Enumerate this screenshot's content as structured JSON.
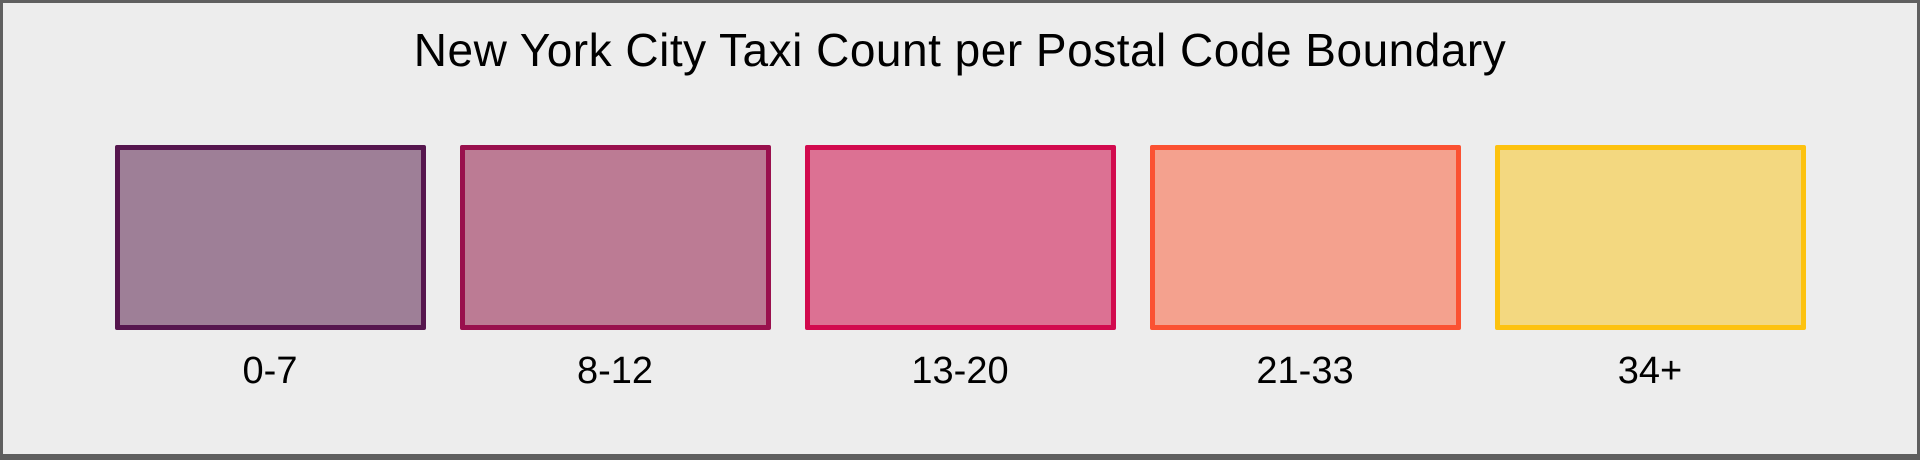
{
  "figure": {
    "title": "New York City Taxi Count per Postal Code Boundary",
    "background_color": "#ededed",
    "frame_color": "#5f5f5f",
    "text_color": "#000000"
  },
  "legend": {
    "items": [
      {
        "label": "0-7",
        "fill": "#9e7f97",
        "stroke": "#56164e"
      },
      {
        "label": "8-12",
        "fill": "#bc7b94",
        "stroke": "#99104d"
      },
      {
        "label": "13-20",
        "fill": "#dc7193",
        "stroke": "#d20a4e"
      },
      {
        "label": "21-33",
        "fill": "#f4a18e",
        "stroke": "#fb5132"
      },
      {
        "label": "34+",
        "fill": "#f3d880",
        "stroke": "#fdc20f"
      }
    ]
  },
  "chart_data": {
    "type": "table",
    "title": "New York City Taxi Count per Postal Code Boundary",
    "description": "Classed choropleth legend: taxi count bins per postal code boundary",
    "categories": [
      "0-7",
      "8-12",
      "13-20",
      "21-33",
      "34+"
    ],
    "bins": [
      {
        "range": "0-7",
        "min": 0,
        "max": 7,
        "fill": "#9e7f97",
        "stroke": "#56164e"
      },
      {
        "range": "8-12",
        "min": 8,
        "max": 12,
        "fill": "#bc7b94",
        "stroke": "#99104d"
      },
      {
        "range": "13-20",
        "min": 13,
        "max": 20,
        "fill": "#dc7193",
        "stroke": "#d20a4e"
      },
      {
        "range": "21-33",
        "min": 21,
        "max": 33,
        "fill": "#f4a18e",
        "stroke": "#fb5132"
      },
      {
        "range": "34+",
        "min": 34,
        "max": null,
        "fill": "#f3d880",
        "stroke": "#fdc20f"
      }
    ],
    "legend_position": "center",
    "grid": false
  }
}
